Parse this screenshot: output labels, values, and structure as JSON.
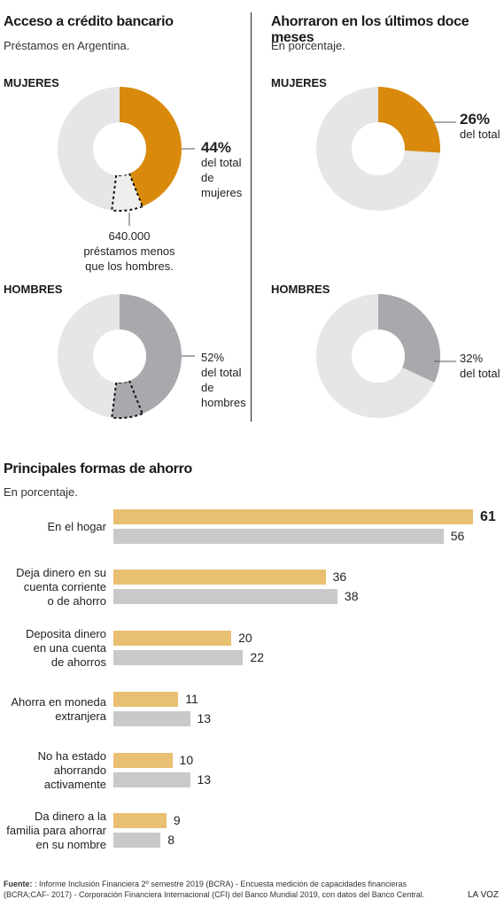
{
  "left": {
    "title": "Acceso a crédito bancario",
    "subtitle": "Préstamos en Argentina.",
    "women": {
      "label": "MUJERES",
      "value": 44,
      "value_text": "44%",
      "desc": [
        "del total",
        "de",
        "mujeres"
      ],
      "note": [
        "640.000",
        "préstamos menos",
        "que los hombres."
      ]
    },
    "men": {
      "label": "HOMBRES",
      "value": 52,
      "value_text": "52%",
      "desc": [
        "del total",
        "de",
        "hombres"
      ]
    }
  },
  "right": {
    "title": "Ahorraron en los últimos doce meses",
    "subtitle": "En porcentaje.",
    "women": {
      "label": "MUJERES",
      "value": 26,
      "value_text": "26%",
      "desc": "del total"
    },
    "men": {
      "label": "HOMBRES",
      "value": 32,
      "value_text": "32%",
      "desc": "del total"
    }
  },
  "colors": {
    "women_accent": "#d98a0c",
    "men_accent": "#a9a9ad",
    "ring_bg": "#e6e6e6",
    "women_bar": "#e9bf72",
    "men_bar": "#c9c9cc"
  },
  "chart_data": {
    "type": "bar",
    "title": "Principales formas de ahorro",
    "subtitle": "En porcentaje.",
    "categories": [
      [
        "En el hogar"
      ],
      [
        "Deja dinero en su",
        "cuenta corriente",
        "o de ahorro"
      ],
      [
        "Deposita dinero",
        "en una cuenta",
        "de ahorros"
      ],
      [
        "Ahorra en moneda",
        "extranjera"
      ],
      [
        "No ha estado",
        "ahorrando",
        "activamente"
      ],
      [
        "Da dinero a la",
        "familia para ahorrar",
        "en su nombre"
      ]
    ],
    "series": [
      {
        "values": [
          61,
          36,
          20,
          11,
          10,
          9
        ]
      },
      {
        "values": [
          56,
          38,
          22,
          13,
          13,
          8
        ]
      }
    ],
    "xlim": [
      0,
      61
    ],
    "orientation": "horizontal",
    "grid": false
  },
  "footer": {
    "label": "Fuente:",
    "text1": " : Informe Inclusión Financiera 2º semestre 2019 (BCRA) - Encuesta medición de capacidades financieras",
    "text2": "(BCRA;CAF- 2017) - Corporación Financiera Internacional (CFI) del Banco Mundial 2019, con datos del Banco Central.",
    "brand": "LA VOZ"
  }
}
